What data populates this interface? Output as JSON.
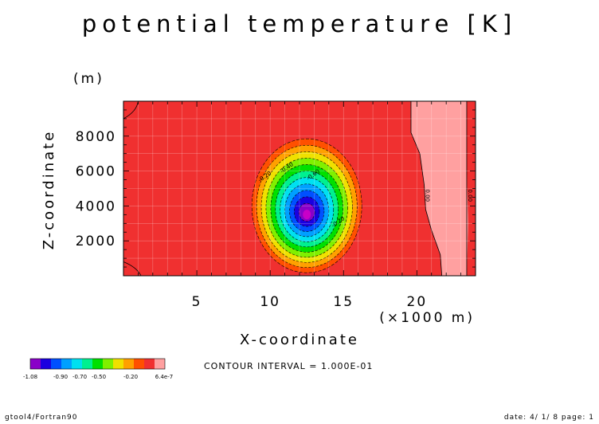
{
  "chart_data": {
    "type": "contour",
    "title": "potential temperature [K]",
    "xlabel": "X-coordinate",
    "ylabel": "Z-coordinate",
    "x_unit": "(×1000 m)",
    "y_unit": "(m)",
    "xlim": [
      0,
      24
    ],
    "ylim": [
      0,
      10000
    ],
    "x_ticks": [
      5,
      10,
      15,
      20
    ],
    "y_ticks": [
      2000,
      4000,
      6000,
      8000
    ],
    "x_tick_labels": [
      "5",
      "10",
      "15",
      "20"
    ],
    "y_tick_labels": [
      "2000",
      "4000",
      "6000",
      "8000"
    ],
    "anomaly_center": {
      "x": 12.5,
      "z": 3600
    },
    "anomaly_min": -1.08,
    "contour_levels": [
      -1.0,
      -0.9,
      -0.8,
      -0.7,
      -0.6,
      -0.5,
      -0.4,
      -0.3,
      -0.2,
      -0.1,
      0.0
    ],
    "contour_labels": [
      {
        "text": "-0.20",
        "x": 9.7,
        "z": 5600
      },
      {
        "text": "-0.40",
        "x": 11.2,
        "z": 6100
      },
      {
        "text": "-0.60",
        "x": 13.0,
        "z": 5700
      },
      {
        "text": "-0.20",
        "x": 14.7,
        "z": 3000
      },
      {
        "text": "0.00",
        "x": 20.6,
        "z": 4600
      },
      {
        "text": "0.00",
        "x": 23.5,
        "z": 4600
      }
    ],
    "colorbar": {
      "colors": [
        "#8a00c8",
        "#1a00e0",
        "#0050ff",
        "#00a0ff",
        "#00e0f0",
        "#00f090",
        "#00e000",
        "#80f000",
        "#f0e000",
        "#ffa000",
        "#ff5000",
        "#f03030",
        "#ffa0a0"
      ],
      "labels": [
        "-1.08",
        "-0.90",
        "-0.70",
        "-0.50",
        "-0.20",
        "6.4e-7"
      ]
    },
    "contour_interval_text": "CONTOUR INTERVAL = 1.000E-01"
  },
  "footer": {
    "left": "gtool4/Fortran90",
    "right": "date: 4/ 1/ 8 page: 1"
  }
}
